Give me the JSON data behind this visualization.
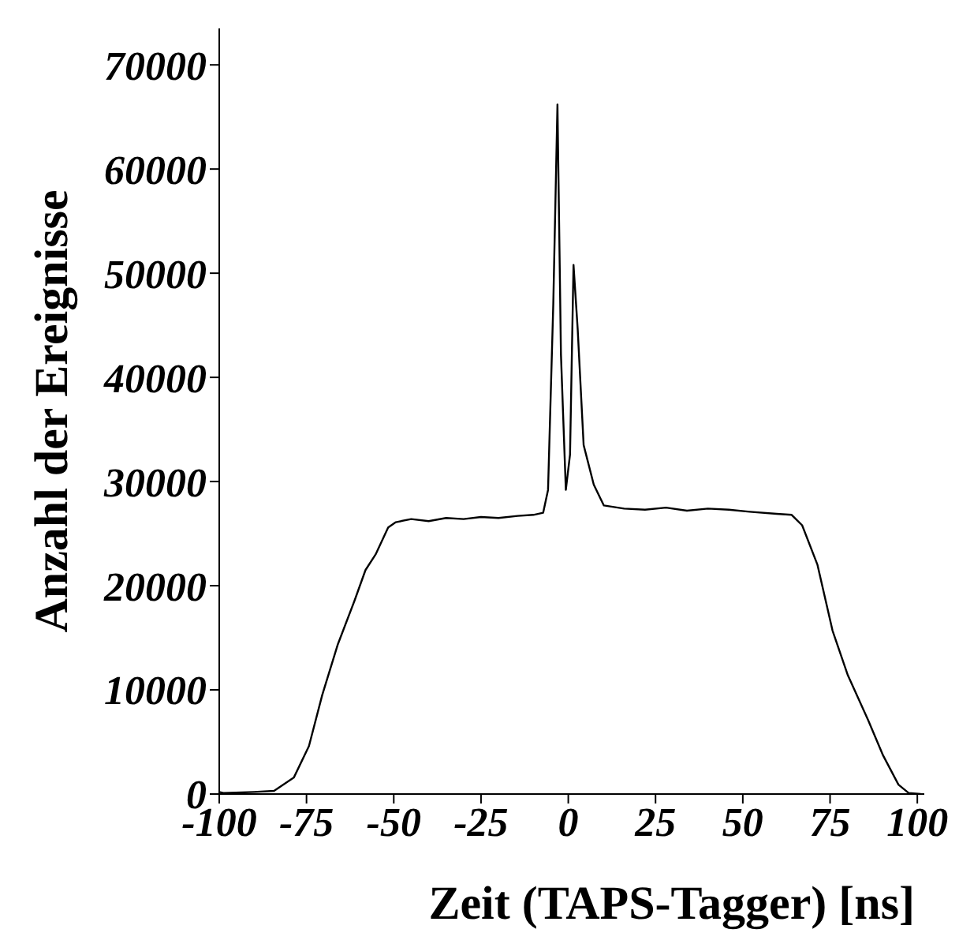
{
  "chart_data": {
    "type": "line",
    "xlabel": "Zeit (TAPS-Tagger) [ns]",
    "ylabel": "Anzahl der Ereignisse",
    "x": [
      -100,
      -98.8,
      -90,
      -84.3,
      -78.6,
      -74.3,
      -70.5,
      -66.1,
      -61.2,
      -58.1,
      -55.2,
      -51.6,
      -49.4,
      -45,
      -40,
      -35,
      -30,
      -25,
      -20,
      -14.5,
      -10,
      -7.2,
      -5.8,
      -4.3,
      -3.1,
      -2.1,
      -0.7,
      0.5,
      1.5,
      2.7,
      4.4,
      7.3,
      10.2,
      16,
      22,
      28,
      34,
      40,
      46,
      52,
      59.7,
      64,
      67,
      71.4,
      75.7,
      80.1,
      85.9,
      90.2,
      94.6,
      97.5,
      101
    ],
    "values": [
      200,
      100,
      200,
      300,
      1600,
      4600,
      9500,
      14300,
      18600,
      21500,
      23000,
      25600,
      26100,
      26400,
      26200,
      26500,
      26400,
      26600,
      26500,
      26700,
      26800,
      27000,
      29200,
      47000,
      66200,
      42200,
      29200,
      32600,
      50800,
      44600,
      33500,
      29700,
      27700,
      27400,
      27300,
      27500,
      27200,
      27400,
      27300,
      27100,
      26900,
      26800,
      25800,
      22000,
      15700,
      11400,
      7100,
      3700,
      900,
      100,
      0
    ],
    "color": "#000000",
    "xlim": [
      -100,
      102
    ],
    "ylim": [
      0,
      73500
    ],
    "xticks": [
      -100,
      -75,
      -50,
      -25,
      0,
      25,
      50,
      75,
      100
    ],
    "yticks": [
      0,
      10000,
      20000,
      30000,
      40000,
      50000,
      60000,
      70000
    ],
    "grid": false,
    "legend": false,
    "marker": "none",
    "line_style": "solid"
  }
}
